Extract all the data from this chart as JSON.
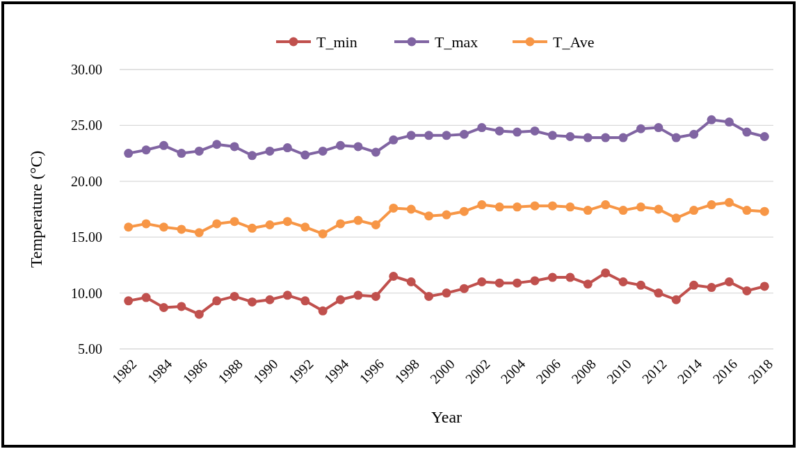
{
  "chart_data": {
    "type": "line",
    "xlabel": "Year",
    "ylabel": "Temperature (°C)",
    "categories": [
      "1982",
      null,
      "1984",
      null,
      "1986",
      null,
      "1988",
      null,
      "1990",
      null,
      "1992",
      null,
      "1994",
      null,
      "1996",
      null,
      "1998",
      null,
      "2000",
      null,
      "2002",
      null,
      "2004",
      null,
      "2006",
      null,
      "2008",
      null,
      "2010",
      null,
      "2012",
      null,
      "2014",
      null,
      "2016",
      null,
      "2018"
    ],
    "series": [
      {
        "name": "T_min",
        "color": "#c0504d",
        "values": [
          9.3,
          9.6,
          8.7,
          8.8,
          8.1,
          9.3,
          9.7,
          9.2,
          9.4,
          9.8,
          9.3,
          8.4,
          9.4,
          9.8,
          9.7,
          11.5,
          11.0,
          9.7,
          10.0,
          10.4,
          11.0,
          10.9,
          10.9,
          11.1,
          11.4,
          11.4,
          10.8,
          11.8,
          11.0,
          10.7,
          10.0,
          9.4,
          10.7,
          10.5,
          11.0,
          10.2,
          10.6
        ]
      },
      {
        "name": "T_max",
        "color": "#8064a2",
        "values": [
          22.5,
          22.8,
          23.2,
          22.5,
          22.7,
          23.3,
          23.1,
          22.3,
          22.7,
          23.0,
          22.35,
          22.7,
          23.2,
          23.1,
          22.6,
          23.7,
          24.1,
          24.1,
          24.1,
          24.2,
          24.8,
          24.5,
          24.4,
          24.5,
          24.1,
          24.0,
          23.9,
          23.9,
          23.9,
          24.7,
          24.8,
          23.9,
          24.2,
          25.5,
          25.3,
          24.4,
          24.0
        ]
      },
      {
        "name": "T_Ave",
        "color": "#f79646",
        "values": [
          15.9,
          16.2,
          15.9,
          15.7,
          15.4,
          16.2,
          16.4,
          15.8,
          16.1,
          16.4,
          15.9,
          15.3,
          16.2,
          16.5,
          16.1,
          17.6,
          17.5,
          16.9,
          17.0,
          17.3,
          17.9,
          17.7,
          17.7,
          17.8,
          17.8,
          17.7,
          17.4,
          17.9,
          17.4,
          17.7,
          17.5,
          16.7,
          17.4,
          17.9,
          18.1,
          17.4,
          17.3
        ]
      }
    ],
    "ylim": [
      5,
      30
    ],
    "yticks": [
      {
        "value": 5,
        "label": "5.00"
      },
      {
        "value": 10,
        "label": "10.00"
      },
      {
        "value": 15,
        "label": "15.00"
      },
      {
        "value": 20,
        "label": "20.00"
      },
      {
        "value": 25,
        "label": "25.00"
      },
      {
        "value": 30,
        "label": "30.00"
      }
    ],
    "grid": "y",
    "legend": "top",
    "marker": "circle",
    "line_style": "solid"
  }
}
